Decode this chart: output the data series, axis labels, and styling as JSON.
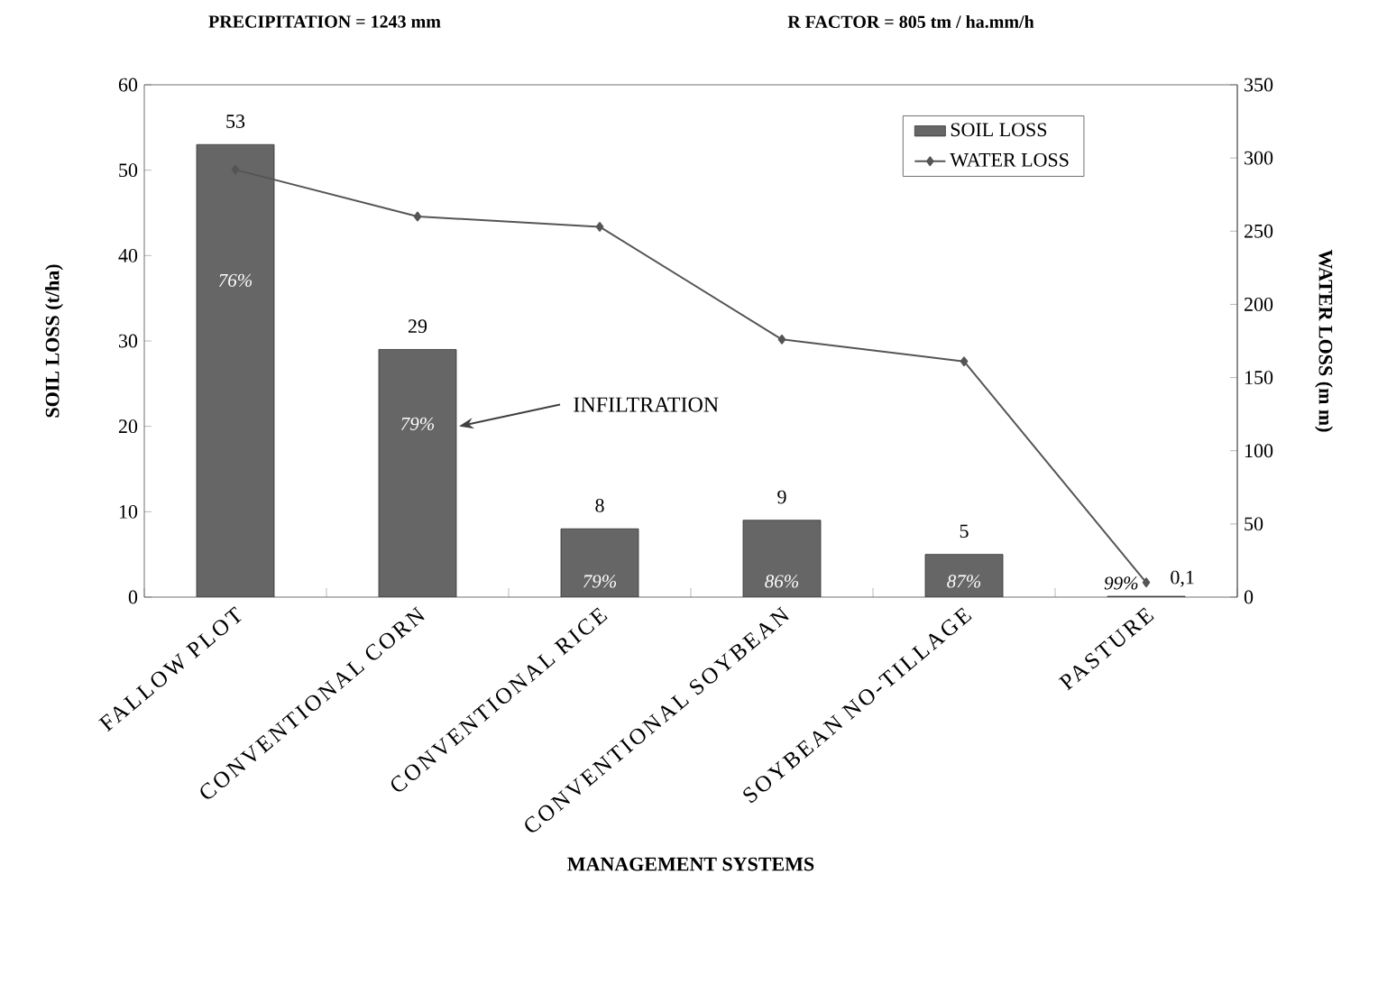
{
  "chart_data": {
    "type": "bar",
    "xlabel": "MANAGEMENT SYSTEMS",
    "ylabel": "SOIL LOSS (t/ha)",
    "y2label": "WATER LOSS (m m)",
    "categories": [
      "FALLOW PLOT",
      "CONVENTIONAL CORN",
      "CONVENTIONAL RICE",
      "CONVENTIONAL SOYBEAN",
      "SOYBEAN NO-TILLAGE",
      "PASTURE"
    ],
    "series": [
      {
        "name": "SOIL LOSS",
        "color": "#666666",
        "values": [
          53,
          29,
          8,
          9,
          5,
          0.1
        ],
        "value_labels": [
          "53",
          "29",
          "8",
          "9",
          "5",
          "0,1"
        ]
      },
      {
        "name": "WATER LOSS",
        "type": "line",
        "axis": "y2",
        "color": "#555555",
        "marker": "diamond",
        "values": [
          292,
          260,
          253,
          176,
          161,
          10
        ]
      }
    ],
    "ylim": [
      0,
      60
    ],
    "yticks": [
      0,
      10,
      20,
      30,
      40,
      50,
      60
    ],
    "y2lim": [
      0,
      350
    ],
    "y2ticks": [
      0,
      50,
      100,
      150,
      200,
      250,
      300,
      350
    ],
    "legend": "top right",
    "annotations": [
      "PRECIPITATION = 1243 mm",
      "R  FACTOR = 805 tm / ha.mm/h",
      "INFILTRATION",
      "76%",
      "79%",
      "79%",
      "86%",
      "87%",
      "99%"
    ]
  }
}
